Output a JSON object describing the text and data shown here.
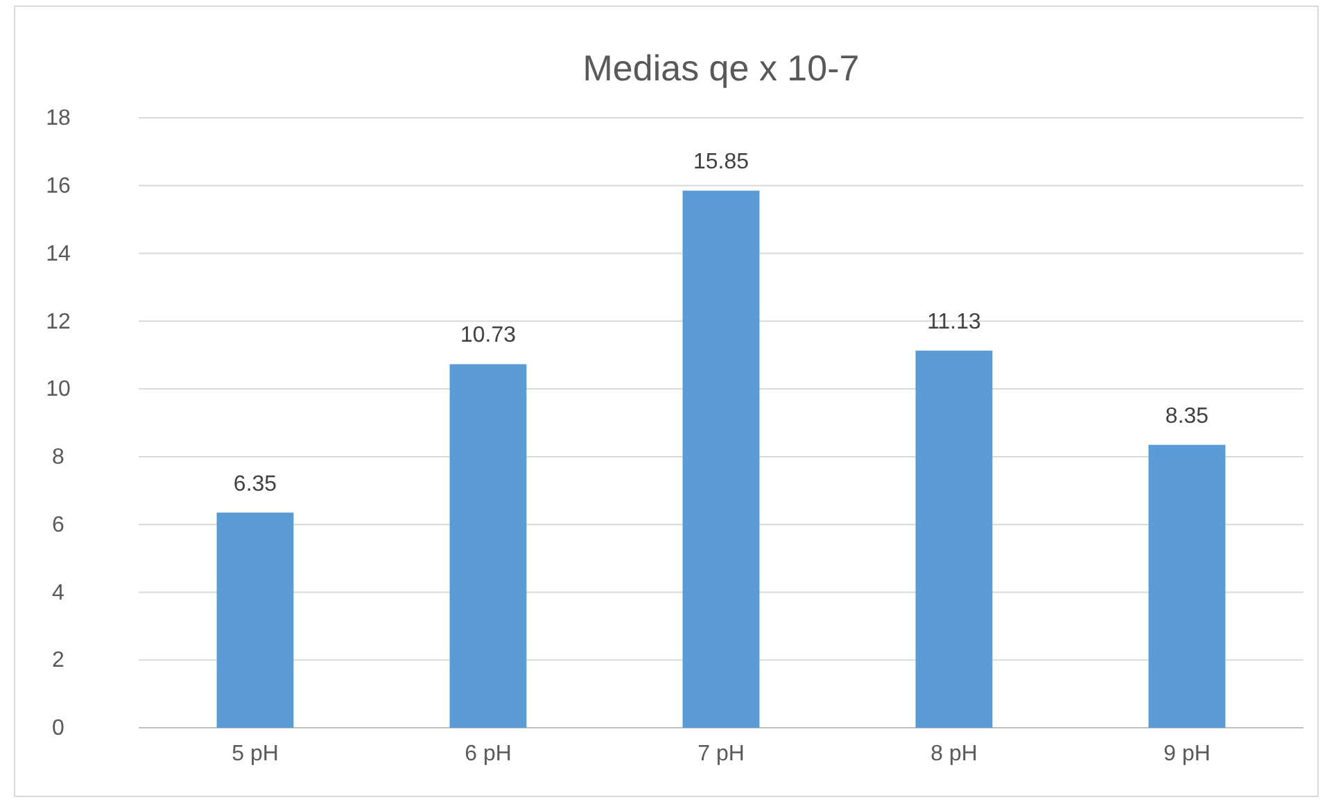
{
  "chart_data": {
    "type": "bar",
    "title": "Medias qe x 10-7",
    "categories": [
      "5 pH",
      "6 pH",
      "7 pH",
      "8 pH",
      "9 pH"
    ],
    "values": [
      6.35,
      10.73,
      15.85,
      11.13,
      8.35
    ],
    "color": "#5b9bd5",
    "ylim": [
      0,
      18
    ],
    "yticks": [
      0,
      2,
      4,
      6,
      8,
      10,
      12,
      14,
      16,
      18
    ],
    "grid": "y",
    "data_labels": true
  }
}
